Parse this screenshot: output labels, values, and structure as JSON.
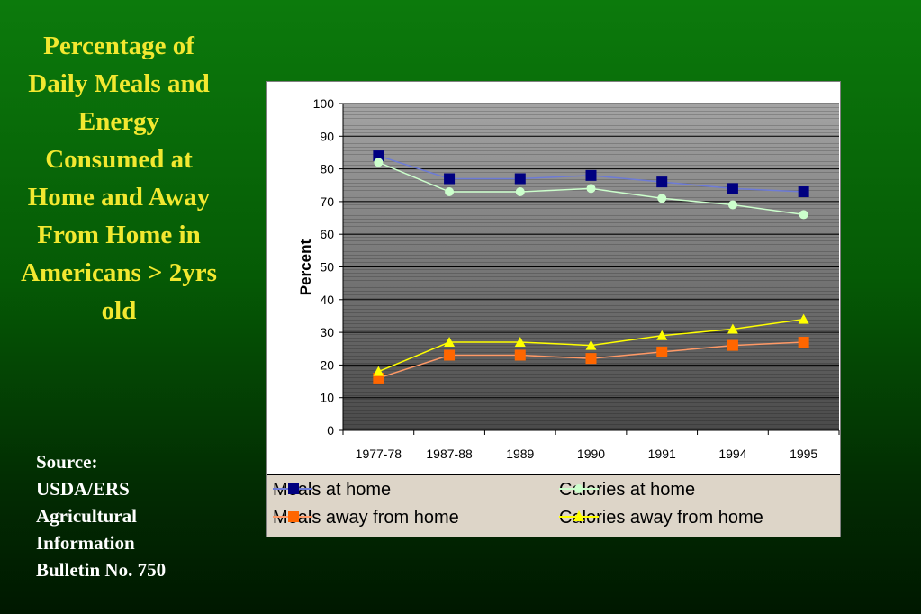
{
  "slide": {
    "title": "Percentage of Daily Meals and Energy Consumed at Home and Away From Home in Americans > 2yrs old",
    "source_lines": [
      "Source:",
      "USDA/ERS",
      "Agricultural",
      "Information",
      "Bulletin No. 750"
    ]
  },
  "colors": {
    "title": "#f2e830",
    "meals_at_home": "#000080",
    "meals_at_home_line": "#6d7bd6",
    "calories_at_home": "#ccffcc",
    "meals_away": "#ff6600",
    "meals_away_line": "#ff9966",
    "calories_away": "#ffff00",
    "legend_bg": "#ddd5c8"
  },
  "chart_data": {
    "type": "line",
    "title": "",
    "xlabel": "",
    "ylabel": "Percent",
    "categories": [
      "1977-78",
      "1987-88",
      "1989",
      "1990",
      "1991",
      "1994",
      "1995"
    ],
    "ylim": [
      0,
      100
    ],
    "yticks": [
      0,
      10,
      20,
      30,
      40,
      50,
      60,
      70,
      80,
      90,
      100
    ],
    "grid": true,
    "legend_position": "bottom",
    "series": [
      {
        "name": "Meals at home",
        "values": [
          84,
          77,
          77,
          78,
          76,
          74,
          73
        ],
        "marker": "square",
        "color": "#000080",
        "line_color": "#6d7bd6"
      },
      {
        "name": "Calories at home",
        "values": [
          82,
          73,
          73,
          74,
          71,
          69,
          66
        ],
        "marker": "circle",
        "color": "#ccffcc",
        "line_color": "#ccffcc"
      },
      {
        "name": "Meals away from home",
        "values": [
          16,
          23,
          23,
          22,
          24,
          26,
          27
        ],
        "marker": "square",
        "color": "#ff6600",
        "line_color": "#ff9966"
      },
      {
        "name": "Calories away from home",
        "values": [
          18,
          27,
          27,
          26,
          29,
          31,
          34
        ],
        "marker": "triangle",
        "color": "#ffff00",
        "line_color": "#ffff00"
      }
    ]
  }
}
